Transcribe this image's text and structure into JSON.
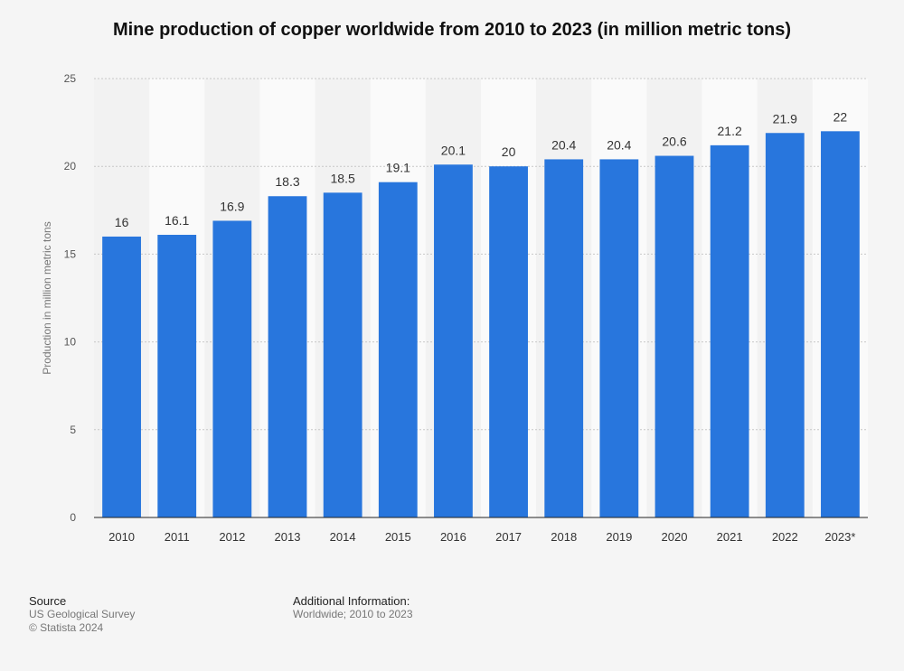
{
  "title": "Mine production of copper worldwide from 2010 to 2023 (in million metric tons)",
  "chart_data": {
    "type": "bar",
    "categories": [
      "2010",
      "2011",
      "2012",
      "2013",
      "2014",
      "2015",
      "2016",
      "2017",
      "2018",
      "2019",
      "2020",
      "2021",
      "2022",
      "2023*"
    ],
    "values": [
      16,
      16.1,
      16.9,
      18.3,
      18.5,
      19.1,
      20.1,
      20,
      20.4,
      20.4,
      20.6,
      21.2,
      21.9,
      22
    ],
    "value_labels": [
      "16",
      "16.1",
      "16.9",
      "18.3",
      "18.5",
      "19.1",
      "20.1",
      "20",
      "20.4",
      "20.4",
      "20.6",
      "21.2",
      "21.9",
      "22"
    ],
    "ylabel": "Production in million metric tons",
    "xlabel": "",
    "ylim": [
      0,
      25
    ],
    "yticks": [
      0,
      5,
      10,
      15,
      20,
      25
    ],
    "grid": true,
    "bar_color": "#2876dd"
  },
  "footer": {
    "source_heading": "Source",
    "source_lines": [
      "US Geological Survey",
      "© Statista 2024"
    ],
    "info_heading": "Additional Information:",
    "info_lines": [
      "Worldwide; 2010 to 2023"
    ]
  }
}
